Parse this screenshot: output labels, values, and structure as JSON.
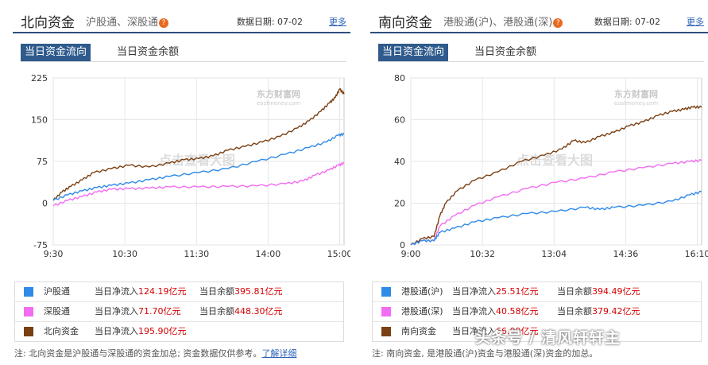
{
  "colors": {
    "brown": "#7a3f12",
    "blue": "#2f8ae8",
    "magenta": "#f26df2",
    "header_line": "#2e4f7f",
    "tab_active_bg": "#2e5a8c",
    "link": "#2b62b8",
    "red": "#d40000"
  },
  "left": {
    "title": "北向资金",
    "subtitle": "沪股通、深股通",
    "help_icon": "question-icon",
    "date_label": "数据日期: 07-02",
    "more": "更多",
    "tab_flow": "当日资金流向",
    "tab_balance": "当日资金余额",
    "watermark_logo": "东方财富网",
    "watermark_logo_sub": "eastmoney.com",
    "watermark_center": "点击查看大图",
    "legend": [
      {
        "name": "沪股通",
        "inflow_label": "当日净流入",
        "inflow": "124.19亿元",
        "balance_label": "当日余额",
        "balance": "395.81亿元",
        "color": "#2f8ae8"
      },
      {
        "name": "深股通",
        "inflow_label": "当日净流入",
        "inflow": "71.70亿元",
        "balance_label": "当日余额",
        "balance": "448.30亿元",
        "color": "#f26df2"
      },
      {
        "name": "北向资金",
        "inflow_label": "当日净流入",
        "inflow": "195.90亿元",
        "balance_label": "",
        "balance": "",
        "color": "#7a3f12"
      }
    ],
    "note": "注: 北向资金是沪股通与深股通的资金加总; 资金数据仅供参考。",
    "note_link": "了解详细"
  },
  "right": {
    "title": "南向资金",
    "subtitle": "港股通(沪)、港股通(深)",
    "help_icon": "question-icon",
    "date_label": "数据日期: 07-02",
    "more": "更多",
    "tab_flow": "当日资金流向",
    "tab_balance": "当日资金余额",
    "watermark_logo": "东方财富网",
    "watermark_logo_sub": "eastmoney.com",
    "watermark_center": "点击查看大图",
    "legend": [
      {
        "name": "港股通(沪)",
        "inflow_label": "当日净流入",
        "inflow": "25.51亿元",
        "balance_label": "当日余额",
        "balance": "394.49亿元",
        "color": "#2f8ae8"
      },
      {
        "name": "港股通(深)",
        "inflow_label": "当日净流入",
        "inflow": "40.58亿元",
        "balance_label": "当日余额",
        "balance": "379.42亿元",
        "color": "#f26df2"
      },
      {
        "name": "南向资金",
        "inflow_label": "当日净流入",
        "inflow": "66.09亿元",
        "balance_label": "",
        "balance": "",
        "color": "#7a3f12"
      }
    ],
    "note": "注: 南向资金, 是港股通(沪)资金与港股通(深)资金的加总。"
  },
  "overlay_watermark": "头条号 / 清风轩轩主",
  "chart_data": [
    {
      "type": "line",
      "x_ticks": [
        "9:30",
        "10:30",
        "11:30",
        "14:00",
        "15:00"
      ],
      "y_ticks": [
        -75,
        0,
        75,
        150,
        225
      ],
      "ylim": [
        -75,
        225
      ],
      "grid": true,
      "series": [
        {
          "name": "北向资金",
          "color": "#7a3f12",
          "x": [
            0,
            0.03,
            0.06,
            0.1,
            0.14,
            0.2,
            0.26,
            0.33,
            0.4,
            0.45,
            0.5,
            0.55,
            0.6,
            0.66,
            0.72,
            0.78,
            0.84,
            0.88,
            0.92,
            0.95,
            0.97,
            0.985,
            1.0
          ],
          "y": [
            5,
            20,
            30,
            42,
            55,
            62,
            68,
            65,
            72,
            78,
            80,
            85,
            95,
            102,
            110,
            120,
            135,
            148,
            165,
            180,
            190,
            205,
            196
          ]
        },
        {
          "name": "沪股通",
          "color": "#2f8ae8",
          "x": [
            0,
            0.05,
            0.1,
            0.15,
            0.2,
            0.26,
            0.33,
            0.4,
            0.5,
            0.6,
            0.7,
            0.8,
            0.88,
            0.94,
            0.98,
            1.0
          ],
          "y": [
            5,
            15,
            22,
            28,
            32,
            36,
            42,
            48,
            55,
            62,
            75,
            88,
            100,
            110,
            122,
            124
          ]
        },
        {
          "name": "深股通",
          "color": "#f26df2",
          "x": [
            0,
            0.05,
            0.1,
            0.15,
            0.2,
            0.26,
            0.33,
            0.4,
            0.5,
            0.6,
            0.7,
            0.8,
            0.86,
            0.9,
            0.95,
            0.98,
            1.0
          ],
          "y": [
            -5,
            5,
            12,
            20,
            25,
            26,
            27,
            29,
            29,
            30,
            31,
            35,
            40,
            50,
            60,
            68,
            72
          ]
        }
      ]
    },
    {
      "type": "line",
      "x_ticks": [
        "9:00",
        "10:32",
        "13:04",
        "14:36",
        "16:10"
      ],
      "y_ticks": [
        0,
        20,
        40,
        60,
        80
      ],
      "ylim": [
        0,
        80
      ],
      "grid": true,
      "series": [
        {
          "name": "南向资金",
          "color": "#7a3f12",
          "x": [
            0,
            0.04,
            0.08,
            0.1,
            0.12,
            0.16,
            0.22,
            0.3,
            0.38,
            0.46,
            0.52,
            0.56,
            0.6,
            0.65,
            0.7,
            0.75,
            0.8,
            0.85,
            0.9,
            0.94,
            0.97,
            1.0
          ],
          "y": [
            0,
            3,
            4,
            14,
            20,
            26,
            31,
            35,
            40,
            43,
            46,
            50,
            49,
            52,
            54,
            57,
            59,
            62,
            64,
            65,
            66,
            66
          ]
        },
        {
          "name": "港股通(深)",
          "color": "#f26df2",
          "x": [
            0,
            0.04,
            0.08,
            0.1,
            0.15,
            0.22,
            0.3,
            0.4,
            0.5,
            0.6,
            0.7,
            0.8,
            0.9,
            0.96,
            1.0
          ],
          "y": [
            0,
            2,
            2,
            9,
            14,
            19,
            23,
            27,
            30,
            32,
            35,
            37,
            39,
            40,
            40.5
          ]
        },
        {
          "name": "港股通(沪)",
          "color": "#2f8ae8",
          "x": [
            0,
            0.04,
            0.08,
            0.1,
            0.15,
            0.22,
            0.3,
            0.4,
            0.5,
            0.6,
            0.65,
            0.7,
            0.8,
            0.9,
            0.96,
            1.0
          ],
          "y": [
            0,
            2,
            2,
            6,
            8,
            11,
            13,
            15,
            16,
            18,
            17,
            18,
            19,
            21,
            24,
            25.5
          ]
        }
      ]
    }
  ]
}
